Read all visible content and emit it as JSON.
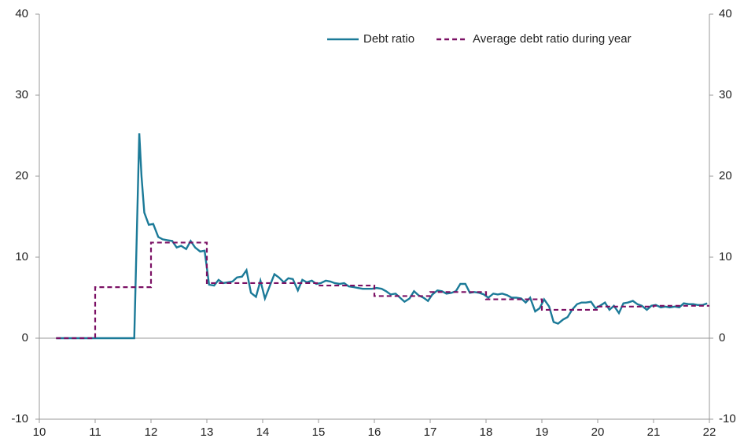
{
  "chart_data": {
    "type": "line",
    "xlim": [
      10,
      22
    ],
    "xticks": [
      10,
      11,
      12,
      13,
      14,
      15,
      16,
      17,
      18,
      19,
      20,
      21,
      22
    ],
    "ylim": [
      -10,
      40
    ],
    "yticks": [
      -10,
      0,
      10,
      20,
      30,
      40
    ],
    "y2lim": [
      -10,
      40
    ],
    "y2ticks": [
      -10,
      0,
      10,
      20,
      30,
      40
    ],
    "legend": "upper right",
    "series": [
      {
        "name": "Debt ratio",
        "color": "#1b7a98",
        "style": "solid",
        "x": [
          10.3,
          11.7,
          11.79,
          11.83,
          11.88,
          11.96,
          12.04,
          12.13,
          12.21,
          12.29,
          12.38,
          12.46,
          12.54,
          12.63,
          12.71,
          12.79,
          12.88,
          12.96,
          13.04,
          13.13,
          13.21,
          13.29,
          13.38,
          13.46,
          13.54,
          13.63,
          13.71,
          13.79,
          13.88,
          13.96,
          14.04,
          14.13,
          14.21,
          14.29,
          14.38,
          14.46,
          14.54,
          14.63,
          14.71,
          14.79,
          14.88,
          14.96,
          15.04,
          15.13,
          15.21,
          15.29,
          15.38,
          15.46,
          15.54,
          15.63,
          15.71,
          15.79,
          15.88,
          15.96,
          16.04,
          16.13,
          16.21,
          16.29,
          16.38,
          16.46,
          16.54,
          16.63,
          16.71,
          16.79,
          16.88,
          16.96,
          17.04,
          17.13,
          17.21,
          17.29,
          17.38,
          17.46,
          17.54,
          17.63,
          17.71,
          17.79,
          17.88,
          17.96,
          18.04,
          18.13,
          18.21,
          18.29,
          18.38,
          18.46,
          18.54,
          18.63,
          18.71,
          18.79,
          18.88,
          18.96,
          19.04,
          19.13,
          19.21,
          19.29,
          19.38,
          19.46,
          19.54,
          19.63,
          19.71,
          19.79,
          19.88,
          19.96,
          20.04,
          20.13,
          20.21,
          20.29,
          20.38,
          20.46,
          20.54,
          20.63,
          20.71,
          20.79,
          20.88,
          20.96,
          21.04,
          21.13,
          21.21,
          21.29,
          21.38,
          21.46,
          21.54,
          21.63,
          21.71,
          21.79,
          21.88,
          21.96
        ],
        "values": [
          0,
          0,
          25.3,
          20,
          15.5,
          14,
          14.1,
          12.5,
          12.2,
          12.1,
          12,
          11.2,
          11.4,
          11,
          12,
          11.2,
          10.7,
          10.8,
          6.6,
          6.5,
          7.2,
          6.8,
          6.9,
          7,
          7.5,
          7.6,
          8.4,
          5.6,
          5.1,
          7.1,
          4.9,
          6.5,
          7.9,
          7.5,
          6.9,
          7.4,
          7.3,
          5.9,
          7.2,
          6.9,
          7.1,
          6.7,
          6.8,
          7.1,
          7,
          6.8,
          6.7,
          6.8,
          6.4,
          6.3,
          6.2,
          6.1,
          6.1,
          6.1,
          6.2,
          6.1,
          5.8,
          5.4,
          5.5,
          5,
          4.5,
          4.9,
          5.8,
          5.3,
          5,
          4.6,
          5.4,
          5.9,
          5.8,
          5.5,
          5.6,
          5.8,
          6.7,
          6.7,
          5.6,
          5.7,
          5.6,
          5.4,
          5,
          5.5,
          5.4,
          5.5,
          5.3,
          5,
          5,
          4.9,
          4.4,
          5,
          3.3,
          3.7,
          4.8,
          3.9,
          2,
          1.8,
          2.3,
          2.6,
          3.5,
          4.2,
          4.4,
          4.4,
          4.5,
          3.7,
          4,
          4.4,
          3.5,
          4,
          3.1,
          4.3,
          4.4,
          4.6,
          4.2,
          4,
          3.5,
          4,
          4.1,
          3.8,
          3.9,
          3.8,
          3.9,
          3.8,
          4.3,
          4.2,
          4.2,
          4.1,
          4.1,
          4.3
        ]
      },
      {
        "name": "Average debt ratio during year",
        "color": "#7b1064",
        "style": "dashed",
        "x": [
          10.3,
          11,
          11,
          12,
          12,
          13,
          13,
          14,
          14,
          15,
          15,
          16,
          16,
          17,
          17,
          18,
          18,
          19,
          19,
          20,
          20,
          21,
          21,
          22
        ],
        "values": [
          0,
          0,
          6.3,
          6.3,
          11.8,
          11.8,
          6.8,
          6.8,
          6.8,
          6.8,
          6.5,
          6.5,
          5.2,
          5.2,
          5.7,
          5.7,
          4.8,
          4.8,
          3.5,
          3.5,
          3.9,
          3.9,
          4,
          4
        ]
      }
    ]
  }
}
